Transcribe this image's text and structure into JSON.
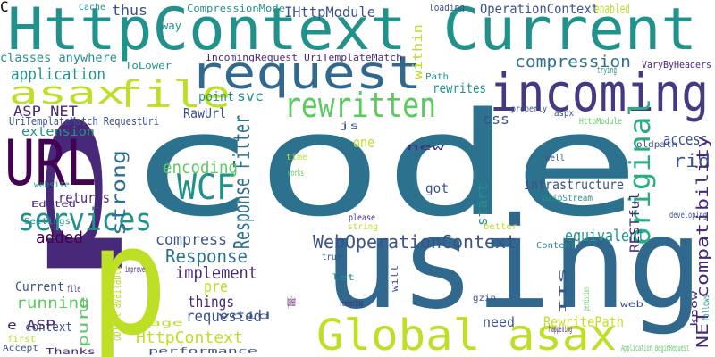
{
  "words": [
    {
      "text": "code",
      "color": "#2c728e"
    },
    {
      "text": "HttpContext Current",
      "color": "#21918c"
    },
    {
      "text": "using",
      "color": "#31688e"
    },
    {
      "text": "p",
      "color": "#482878"
    },
    {
      "text": "p",
      "color": "#bddf26"
    },
    {
      "text": "request",
      "color": "#31688e"
    },
    {
      "text": "incoming",
      "color": "#443983"
    },
    {
      "text": "URL",
      "color": "#440154"
    },
    {
      "text": "Global asax",
      "color": "#bddf26"
    },
    {
      "text": "file",
      "color": "#bddf26"
    },
    {
      "text": "asax",
      "color": "#bddf26"
    },
    {
      "text": "rewritten",
      "color": "#5ec962"
    },
    {
      "text": "services",
      "color": "#21918c"
    },
    {
      "text": "WCF",
      "color": "#21918c"
    },
    {
      "text": "original",
      "color": "#28ae80"
    },
    {
      "text": "compression",
      "color": "#2c728e"
    },
    {
      "text": "WebOperationContext",
      "color": "#3b528b"
    },
    {
      "text": "HttpContext",
      "color": "#bddf26"
    },
    {
      "text": "OperationContext",
      "color": "#3b528b"
    },
    {
      "text": "IHttpModule",
      "color": "#3b528b"
    },
    {
      "text": "Response Filter",
      "color": "#2c728e"
    },
    {
      "text": "encoding",
      "color": "#5ec962"
    },
    {
      "text": "strong",
      "color": "#2c728e"
    },
    {
      "text": "access",
      "color": "#3b528b"
    },
    {
      "text": "rid",
      "color": "#3b528b"
    },
    {
      "text": "Response",
      "color": "#2c728e"
    },
    {
      "text": "implement",
      "color": "#482878"
    },
    {
      "text": "running",
      "color": "#5ec962"
    },
    {
      "text": "added",
      "color": "#440154"
    },
    {
      "text": "application",
      "color": "#21918c"
    },
    {
      "text": "classes anywhere",
      "color": "#21918c"
    },
    {
      "text": "infrastructure",
      "color": "#3b528b"
    },
    {
      "text": "equivalent",
      "color": "#21918c"
    },
    {
      "text": "compress",
      "color": "#3b528b"
    },
    {
      "text": "requested",
      "color": "#3b528b"
    },
    {
      "text": "things",
      "color": "#482878"
    },
    {
      "text": "pre",
      "color": "#bddf26"
    },
    {
      "text": "RESTful",
      "color": "#482878"
    },
    {
      "text": "NET compatibility",
      "color": "#482878"
    },
    {
      "text": "RewritePath",
      "color": "#bddf26"
    },
    {
      "text": "object available",
      "color": "#bddf26"
    },
    {
      "text": "pure",
      "color": "#5ec962"
    },
    {
      "text": "ASP NET",
      "color": "#482878"
    },
    {
      "text": "thus",
      "color": "#3b528b"
    },
    {
      "text": "enabled",
      "color": "#bddf26"
    },
    {
      "text": "rewrites",
      "color": "#21918c"
    },
    {
      "text": "within",
      "color": "#bddf26"
    },
    {
      "text": "svc",
      "color": "#21918c"
    },
    {
      "text": "point",
      "color": "#21918c"
    },
    {
      "text": "RawUrl",
      "color": "#3b528b"
    },
    {
      "text": "css",
      "color": "#3b528b"
    },
    {
      "text": "got",
      "color": "#3b528b"
    },
    {
      "text": "start",
      "color": "#21918c"
    },
    {
      "text": "returns",
      "color": "#482878"
    },
    {
      "text": "extension",
      "color": "#21918c"
    },
    {
      "text": "Current",
      "color": "#3b528b"
    },
    {
      "text": "context",
      "color": "#3b528b"
    },
    {
      "text": "e ASP",
      "color": "#482878"
    },
    {
      "text": "need",
      "color": "#3b528b"
    },
    {
      "text": "one",
      "color": "#bddf26"
    },
    {
      "text": "UriTemplateMatch RequestUri",
      "color": "#3b528b"
    },
    {
      "text": "IncomingRequest UriTemplateMatch",
      "color": "#482878"
    },
    {
      "text": "CompressionMode",
      "color": "#21918c"
    },
    {
      "text": "Cache",
      "color": "#21918c"
    },
    {
      "text": "loading",
      "color": "#3b528b"
    },
    {
      "text": "way",
      "color": "#21918c"
    },
    {
      "text": "ToLower",
      "color": "#21918c"
    },
    {
      "text": "VaryByHeaders",
      "color": "#482878"
    },
    {
      "text": "trying",
      "color": "#21918c"
    },
    {
      "text": "Path",
      "color": "#21918c"
    },
    {
      "text": "properly",
      "color": "#3b528b"
    },
    {
      "text": "aspx",
      "color": "#3b528b"
    },
    {
      "text": "HttpModule",
      "color": "#5ec962"
    },
    {
      "text": "oldpath",
      "color": "#3b528b"
    },
    {
      "text": "well",
      "color": "#3b528b"
    },
    {
      "text": "js",
      "color": "#3b528b"
    },
    {
      "text": "time",
      "color": "#bddf26"
    },
    {
      "text": "works",
      "color": "#5ec962"
    },
    {
      "text": "new",
      "color": "#482878"
    },
    {
      "text": "website",
      "color": "#21918c"
    },
    {
      "text": "Edited",
      "color": "#482878"
    },
    {
      "text": "Settings",
      "color": "#21918c"
    },
    {
      "text": "GZipStream",
      "color": "#21918c"
    },
    {
      "text": "developing",
      "color": "#3b528b"
    },
    {
      "text": "please",
      "color": "#482878"
    },
    {
      "text": "string",
      "color": "#bddf26"
    },
    {
      "text": "better",
      "color": "#bddf26"
    },
    {
      "text": "Content",
      "color": "#21918c"
    },
    {
      "text": "improve",
      "color": "#482878"
    },
    {
      "text": "true",
      "color": "#3b528b"
    },
    {
      "text": "file",
      "color": "#482878"
    },
    {
      "text": "let",
      "color": "#21918c"
    },
    {
      "text": "gzip",
      "color": "#3b528b"
    },
    {
      "text": "will",
      "color": "#3b528b"
    },
    {
      "text": "IIS",
      "color": "#3b528b"
    },
    {
      "text": "permission",
      "color": "#5ec962"
    },
    {
      "text": "web",
      "color": "#3b528b"
    },
    {
      "text": "know",
      "color": "#482878"
    },
    {
      "text": "follows",
      "color": "#21918c"
    },
    {
      "text": "void",
      "color": "#3b528b"
    },
    {
      "text": "rendering",
      "color": "#482878"
    },
    {
      "text": "page",
      "color": "#bddf26"
    },
    {
      "text": "happening",
      "color": "#482878"
    },
    {
      "text": "first",
      "color": "#bddf26"
    },
    {
      "text": "Accept",
      "color": "#3b528b"
    },
    {
      "text": "Thanks",
      "color": "#482878"
    },
    {
      "text": "performance",
      "color": "#3b528b"
    },
    {
      "text": "Application_BeginRequest",
      "color": "#5ec962"
    },
    {
      "text": "AppendHeader",
      "color": "#440154"
    },
    {
      "text": "C",
      "color": "#bddf26"
    }
  ]
}
